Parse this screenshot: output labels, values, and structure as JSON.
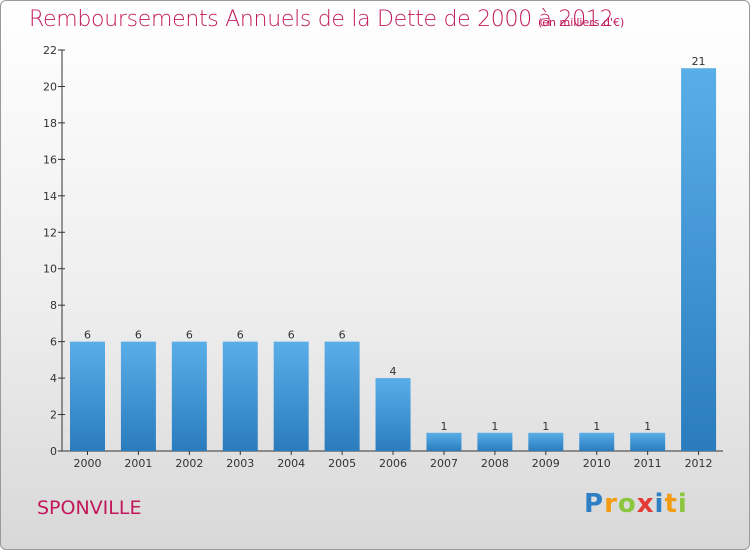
{
  "header": {
    "title": "Remboursements Annuels de la Dette de 2000 à 2012",
    "subtitle": "(en milliers d'€)"
  },
  "commune": "SPONVILLE",
  "logo": {
    "text": "Proxiti",
    "letters": [
      {
        "ch": "P",
        "color": "#2e7fc4"
      },
      {
        "ch": "r",
        "color": "#f39c12"
      },
      {
        "ch": "o",
        "color": "#8cc63f"
      },
      {
        "ch": "x",
        "color": "#e53935"
      },
      {
        "ch": "i",
        "color": "#2e7fc4"
      },
      {
        "ch": "t",
        "color": "#f39c12"
      },
      {
        "ch": "i",
        "color": "#8cc63f"
      }
    ]
  },
  "chart_data": {
    "type": "bar",
    "categories": [
      "2000",
      "2001",
      "2002",
      "2003",
      "2004",
      "2005",
      "2006",
      "2007",
      "2008",
      "2009",
      "2010",
      "2011",
      "2012"
    ],
    "values": [
      6,
      6,
      6,
      6,
      6,
      6,
      4,
      1,
      1,
      1,
      1,
      1,
      21
    ],
    "ylim": [
      0,
      22
    ],
    "yticks": [
      0,
      2,
      4,
      6,
      8,
      10,
      12,
      14,
      16,
      18,
      20,
      22
    ],
    "grid": false,
    "bar_color": "#3a95d8",
    "text_color": "#c2185b"
  }
}
